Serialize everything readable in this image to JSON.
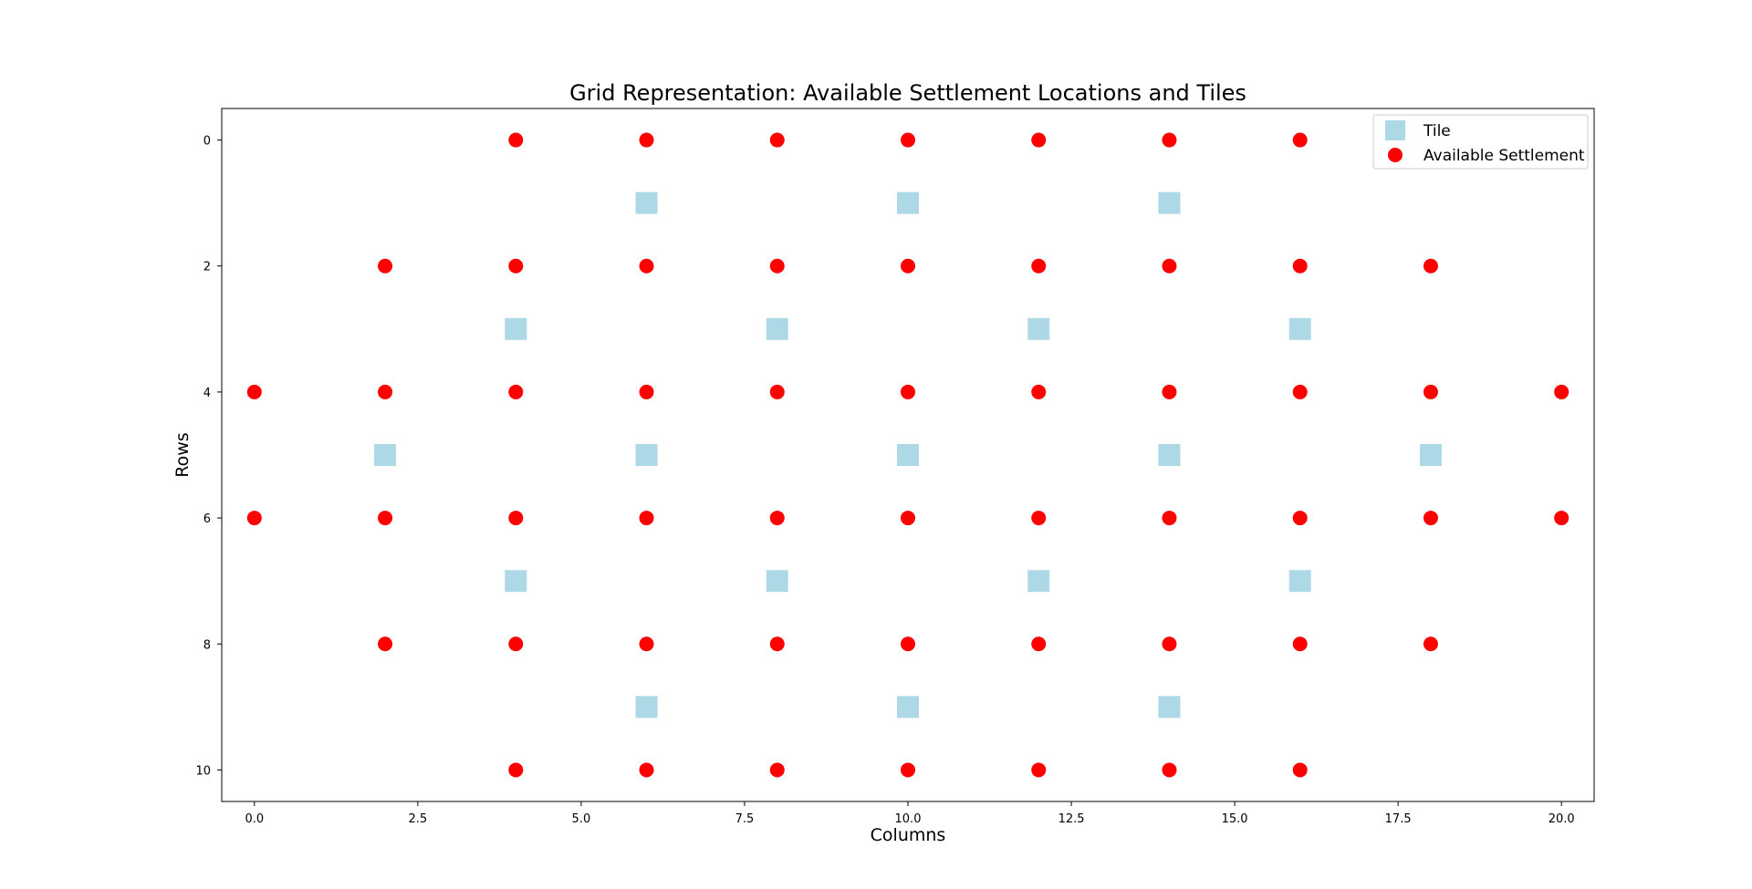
{
  "chart_data": {
    "type": "scatter",
    "title": "Grid Representation: Available Settlement Locations and Tiles",
    "xlabel": "Columns",
    "ylabel": "Rows",
    "xlim": [
      -0.5,
      20.5
    ],
    "ylim": [
      10.5,
      -0.5
    ],
    "y_inverted": true,
    "x_ticks": [
      0.0,
      2.5,
      5.0,
      7.5,
      10.0,
      12.5,
      15.0,
      17.5,
      20.0
    ],
    "x_tick_labels": [
      "0.0",
      "2.5",
      "5.0",
      "7.5",
      "10.0",
      "12.5",
      "15.0",
      "17.5",
      "20.0"
    ],
    "y_ticks": [
      0,
      2,
      4,
      6,
      8,
      10
    ],
    "y_tick_labels": [
      "0",
      "2",
      "4",
      "6",
      "8",
      "10"
    ],
    "grid": false,
    "legend_position": "top-right",
    "series": [
      {
        "name": "Tile",
        "marker": "square",
        "color": "#add8e6",
        "points": [
          [
            6,
            1
          ],
          [
            10,
            1
          ],
          [
            14,
            1
          ],
          [
            4,
            3
          ],
          [
            8,
            3
          ],
          [
            12,
            3
          ],
          [
            16,
            3
          ],
          [
            2,
            5
          ],
          [
            6,
            5
          ],
          [
            10,
            5
          ],
          [
            14,
            5
          ],
          [
            18,
            5
          ],
          [
            4,
            7
          ],
          [
            8,
            7
          ],
          [
            12,
            7
          ],
          [
            16,
            7
          ],
          [
            6,
            9
          ],
          [
            10,
            9
          ],
          [
            14,
            9
          ]
        ]
      },
      {
        "name": "Available Settlement",
        "marker": "circle",
        "color": "#ff0000",
        "points": [
          [
            4,
            0
          ],
          [
            6,
            0
          ],
          [
            8,
            0
          ],
          [
            10,
            0
          ],
          [
            12,
            0
          ],
          [
            14,
            0
          ],
          [
            16,
            0
          ],
          [
            2,
            2
          ],
          [
            4,
            2
          ],
          [
            6,
            2
          ],
          [
            8,
            2
          ],
          [
            10,
            2
          ],
          [
            12,
            2
          ],
          [
            14,
            2
          ],
          [
            16,
            2
          ],
          [
            18,
            2
          ],
          [
            0,
            4
          ],
          [
            2,
            4
          ],
          [
            4,
            4
          ],
          [
            6,
            4
          ],
          [
            8,
            4
          ],
          [
            10,
            4
          ],
          [
            12,
            4
          ],
          [
            14,
            4
          ],
          [
            16,
            4
          ],
          [
            18,
            4
          ],
          [
            20,
            4
          ],
          [
            0,
            6
          ],
          [
            2,
            6
          ],
          [
            4,
            6
          ],
          [
            6,
            6
          ],
          [
            8,
            6
          ],
          [
            10,
            6
          ],
          [
            12,
            6
          ],
          [
            14,
            6
          ],
          [
            16,
            6
          ],
          [
            18,
            6
          ],
          [
            20,
            6
          ],
          [
            2,
            8
          ],
          [
            4,
            8
          ],
          [
            6,
            8
          ],
          [
            8,
            8
          ],
          [
            10,
            8
          ],
          [
            12,
            8
          ],
          [
            14,
            8
          ],
          [
            16,
            8
          ],
          [
            18,
            8
          ],
          [
            4,
            10
          ],
          [
            6,
            10
          ],
          [
            8,
            10
          ],
          [
            10,
            10
          ],
          [
            12,
            10
          ],
          [
            14,
            10
          ],
          [
            16,
            10
          ]
        ]
      }
    ]
  }
}
